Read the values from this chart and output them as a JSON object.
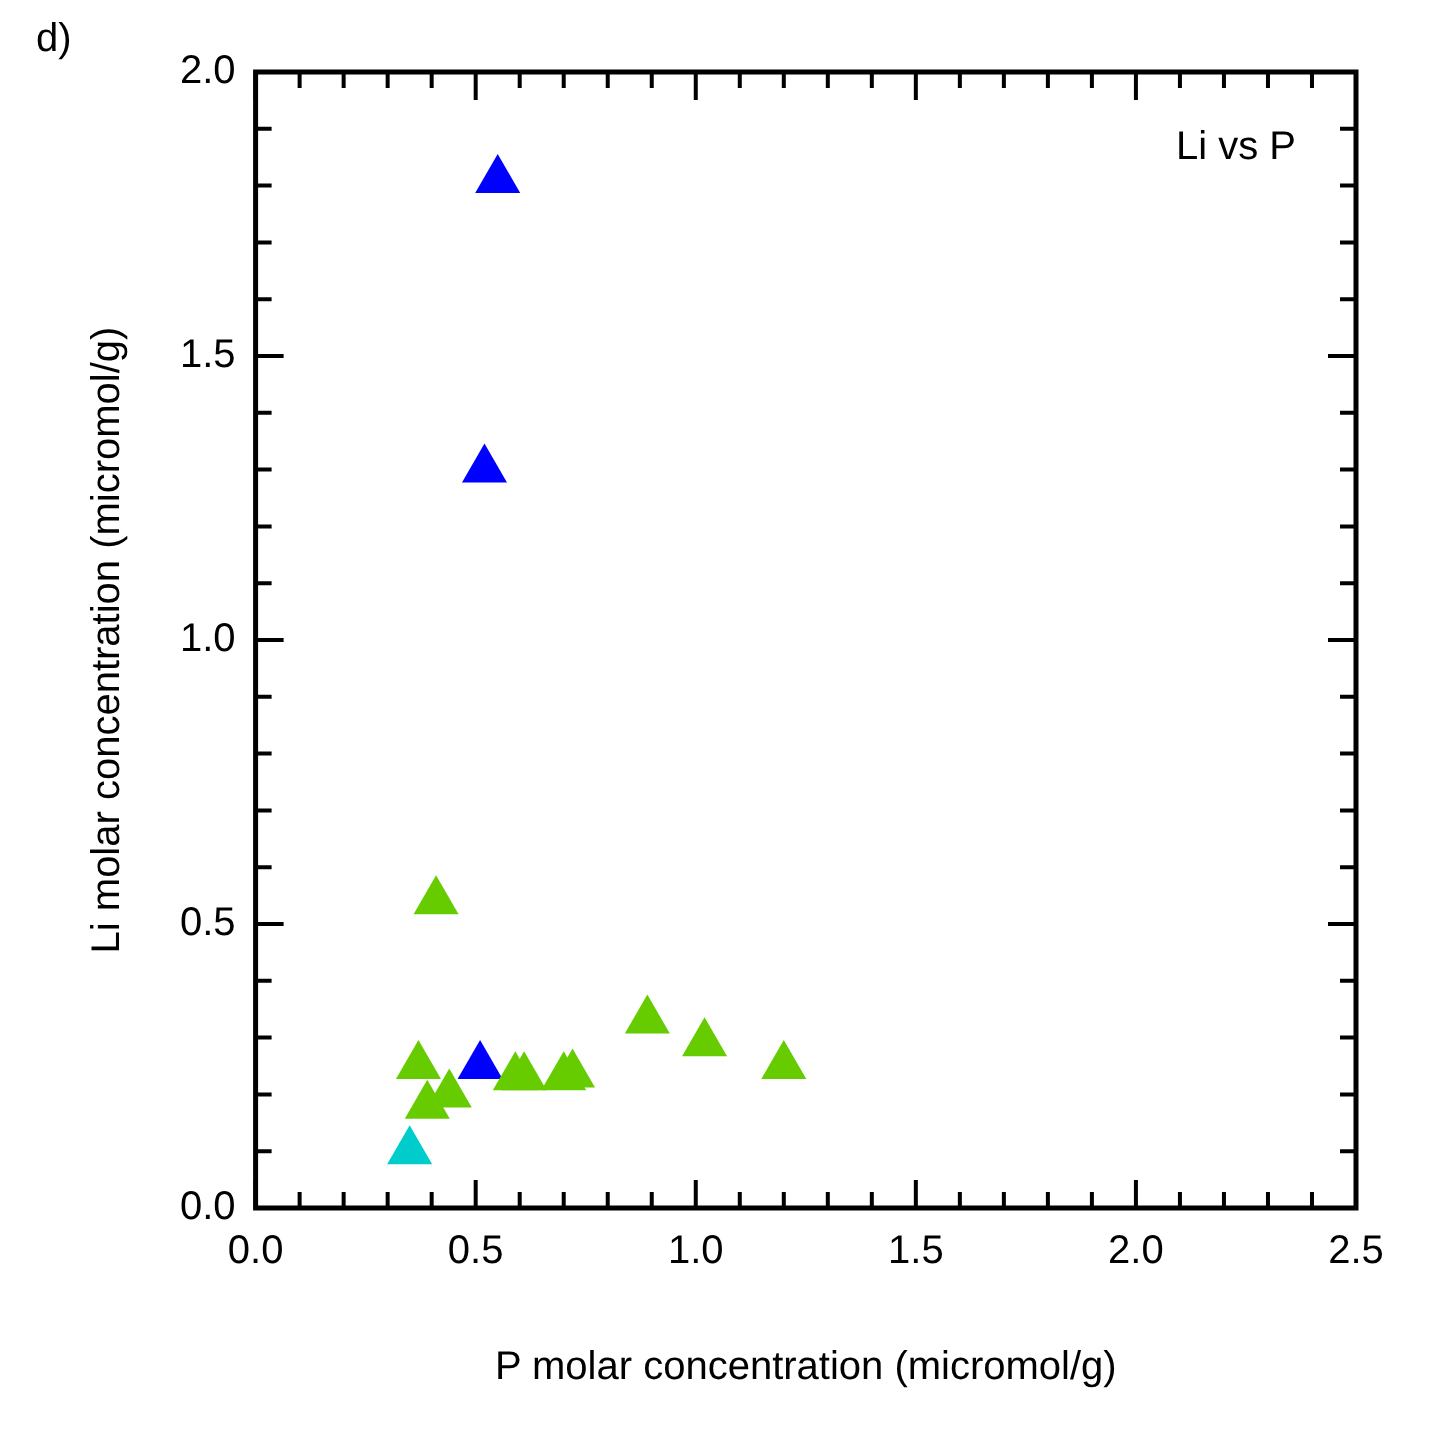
{
  "chart_data": {
    "type": "scatter",
    "title": "d)",
    "xlabel": "P molar concentration (micromol/g)",
    "ylabel": "Li molar concentration (micromol/g)",
    "annotations": [
      "Li vs P"
    ],
    "marker": "triangle",
    "grid": false,
    "xlim": [
      0,
      2.5
    ],
    "ylim": [
      0,
      2
    ],
    "xticks": [
      {
        "value": 0,
        "label": "0.0"
      },
      {
        "value": 0.1,
        "label": null
      },
      {
        "value": 0.2,
        "label": null
      },
      {
        "value": 0.3,
        "label": null
      },
      {
        "value": 0.4,
        "label": null
      },
      {
        "value": 0.5,
        "label": "0.5"
      },
      {
        "value": 0.6,
        "label": null
      },
      {
        "value": 0.7,
        "label": null
      },
      {
        "value": 0.8,
        "label": null
      },
      {
        "value": 0.9,
        "label": null
      },
      {
        "value": 1,
        "label": "1.0"
      },
      {
        "value": 1.1,
        "label": null
      },
      {
        "value": 1.2,
        "label": null
      },
      {
        "value": 1.3,
        "label": null
      },
      {
        "value": 1.4,
        "label": null
      },
      {
        "value": 1.5,
        "label": "1.5"
      },
      {
        "value": 1.6,
        "label": null
      },
      {
        "value": 1.7,
        "label": null
      },
      {
        "value": 1.8,
        "label": null
      },
      {
        "value": 1.9,
        "label": null
      },
      {
        "value": 2,
        "label": "2.0"
      },
      {
        "value": 2.1,
        "label": null
      },
      {
        "value": 2.2,
        "label": null
      },
      {
        "value": 2.3,
        "label": null
      },
      {
        "value": 2.4,
        "label": null
      },
      {
        "value": 2.5,
        "label": "2.5"
      }
    ],
    "yticks": [
      {
        "value": 0,
        "label": "0.0"
      },
      {
        "value": 0.1,
        "label": null
      },
      {
        "value": 0.2,
        "label": null
      },
      {
        "value": 0.3,
        "label": null
      },
      {
        "value": 0.4,
        "label": null
      },
      {
        "value": 0.5,
        "label": "0.5"
      },
      {
        "value": 0.6,
        "label": null
      },
      {
        "value": 0.7,
        "label": null
      },
      {
        "value": 0.8,
        "label": null
      },
      {
        "value": 0.9,
        "label": null
      },
      {
        "value": 1,
        "label": "1.0"
      },
      {
        "value": 1.1,
        "label": null
      },
      {
        "value": 1.2,
        "label": null
      },
      {
        "value": 1.3,
        "label": null
      },
      {
        "value": 1.4,
        "label": null
      },
      {
        "value": 1.5,
        "label": "1.5"
      },
      {
        "value": 1.6,
        "label": null
      },
      {
        "value": 1.7,
        "label": null
      },
      {
        "value": 1.8,
        "label": null
      },
      {
        "value": 1.9,
        "label": null
      },
      {
        "value": 2,
        "label": "2.0"
      }
    ],
    "series": [
      {
        "color": "#66cc00",
        "x": [
          0.41,
          0.37,
          0.39,
          0.44,
          0.59,
          0.61,
          0.7,
          0.72,
          0.89,
          1.02,
          1.2
        ],
        "values": [
          0.54,
          0.25,
          0.18,
          0.2,
          0.23,
          0.23,
          0.23,
          0.235,
          0.33,
          0.29,
          0.25
        ]
      },
      {
        "color": "#0000ff",
        "x": [
          0.55,
          0.52,
          0.51
        ],
        "values": [
          1.81,
          1.3,
          0.25
        ]
      },
      {
        "color": "#00cccc",
        "x": [
          0.35
        ],
        "values": [
          0.1
        ]
      }
    ]
  }
}
